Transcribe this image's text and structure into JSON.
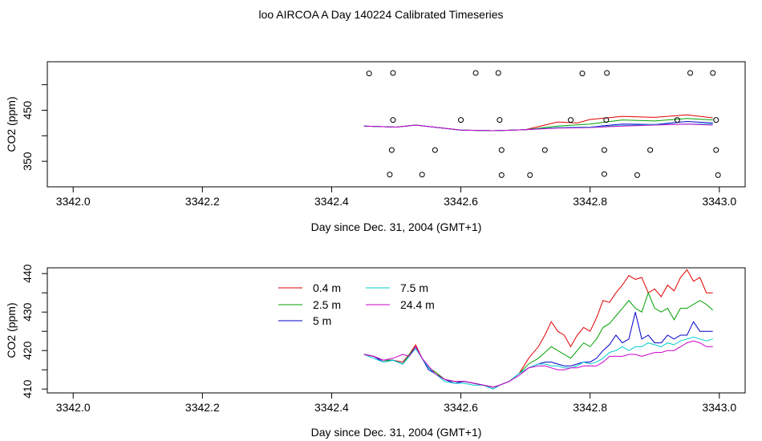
{
  "title": "loo AIRCOA A  Day 140224  Calibrated Timeseries",
  "chart_data": [
    {
      "type": "line",
      "panel": "top",
      "xlabel": "Day since Dec. 31, 2004 (GMT+1)",
      "ylabel": "CO2 (ppm)",
      "xlim": [
        3341.96,
        3343.04
      ],
      "ylim": [
        300,
        545
      ],
      "xticks": [
        "3342.0",
        "3342.2",
        "3342.4",
        "3342.6",
        "3342.8",
        "3343.0"
      ],
      "xtick_values": [
        3342.0,
        3342.2,
        3342.4,
        3342.6,
        3342.8,
        3343.0
      ],
      "yticks": [
        "350",
        "400",
        "450",
        "500"
      ],
      "ytick_values": [
        350,
        400,
        450,
        500
      ],
      "ytick_labels_shown": [
        "350",
        "450"
      ],
      "series": [
        {
          "color": "#e00000",
          "x": [
            3342.45,
            3342.5,
            3342.53,
            3342.6,
            3342.65,
            3342.7,
            3342.75,
            3342.78,
            3342.8,
            3342.85,
            3342.9,
            3342.95,
            3342.99
          ],
          "values": [
            419,
            417,
            421,
            411,
            410,
            412,
            427,
            425,
            432,
            438,
            436,
            441,
            435
          ]
        },
        {
          "color": "#00a000",
          "x": [
            3342.45,
            3342.5,
            3342.53,
            3342.6,
            3342.65,
            3342.7,
            3342.75,
            3342.8,
            3342.85,
            3342.9,
            3342.95,
            3342.99
          ],
          "values": [
            419,
            417,
            421,
            411,
            410,
            412,
            419,
            423,
            431,
            429,
            434,
            431
          ]
        },
        {
          "color": "#0000cc",
          "x": [
            3342.45,
            3342.5,
            3342.53,
            3342.6,
            3342.65,
            3342.7,
            3342.75,
            3342.8,
            3342.85,
            3342.9,
            3342.95,
            3342.99
          ],
          "values": [
            419,
            417,
            421,
            411,
            410,
            412,
            416,
            417,
            423,
            422,
            428,
            425
          ]
        },
        {
          "color": "#00cccc",
          "x": [
            3342.45,
            3342.5,
            3342.53,
            3342.6,
            3342.65,
            3342.7,
            3342.75,
            3342.8,
            3342.85,
            3342.9,
            3342.95,
            3342.99
          ],
          "values": [
            419,
            417,
            421,
            411,
            410,
            412,
            416,
            417,
            420,
            422,
            423,
            423
          ]
        },
        {
          "color": "#cc00cc",
          "x": [
            3342.45,
            3342.5,
            3342.53,
            3342.6,
            3342.65,
            3342.7,
            3342.75,
            3342.8,
            3342.85,
            3342.9,
            3342.95,
            3342.99
          ],
          "values": [
            419,
            417,
            421,
            411,
            410,
            412,
            415,
            416,
            419,
            421,
            423,
            421
          ]
        }
      ],
      "points": [
        {
          "x": 3342.458,
          "y": 522
        },
        {
          "x": 3342.495,
          "y": 523
        },
        {
          "x": 3342.623,
          "y": 523
        },
        {
          "x": 3342.658,
          "y": 523
        },
        {
          "x": 3342.788,
          "y": 522
        },
        {
          "x": 3342.826,
          "y": 523
        },
        {
          "x": 3342.955,
          "y": 523
        },
        {
          "x": 3342.99,
          "y": 523
        },
        {
          "x": 3342.495,
          "y": 431
        },
        {
          "x": 3342.6,
          "y": 431
        },
        {
          "x": 3342.66,
          "y": 431
        },
        {
          "x": 3342.77,
          "y": 431
        },
        {
          "x": 3342.825,
          "y": 431
        },
        {
          "x": 3342.935,
          "y": 431
        },
        {
          "x": 3342.995,
          "y": 431
        },
        {
          "x": 3342.493,
          "y": 372
        },
        {
          "x": 3342.56,
          "y": 372
        },
        {
          "x": 3342.663,
          "y": 372
        },
        {
          "x": 3342.73,
          "y": 372
        },
        {
          "x": 3342.822,
          "y": 372
        },
        {
          "x": 3342.893,
          "y": 372
        },
        {
          "x": 3342.995,
          "y": 372
        },
        {
          "x": 3342.49,
          "y": 324
        },
        {
          "x": 3342.54,
          "y": 324
        },
        {
          "x": 3342.663,
          "y": 323
        },
        {
          "x": 3342.707,
          "y": 323
        },
        {
          "x": 3342.822,
          "y": 325
        },
        {
          "x": 3342.873,
          "y": 323
        },
        {
          "x": 3342.998,
          "y": 323
        }
      ]
    },
    {
      "type": "line",
      "panel": "bottom",
      "xlabel": "Day since Dec. 31, 2004 (GMT+1)",
      "ylabel": "CO2 (ppm)",
      "xlim": [
        3341.96,
        3343.04
      ],
      "ylim": [
        409,
        441.5
      ],
      "xticks": [
        "3342.0",
        "3342.2",
        "3342.4",
        "3342.6",
        "3342.8",
        "3343.0"
      ],
      "xtick_values": [
        3342.0,
        3342.2,
        3342.4,
        3342.6,
        3342.8,
        3343.0
      ],
      "yticks": [
        "410",
        "415",
        "420",
        "425",
        "430",
        "435",
        "440"
      ],
      "ytick_values": [
        410,
        415,
        420,
        425,
        430,
        435,
        440
      ],
      "ytick_labels_shown": [
        "410",
        "420",
        "430",
        "440"
      ],
      "legend": "top-left",
      "series": [
        {
          "name": "0.4 m",
          "color": "#e00000",
          "x": [
            3342.45,
            3342.465,
            3342.48,
            3342.495,
            3342.51,
            3342.52,
            3342.53,
            3342.54,
            3342.55,
            3342.56,
            3342.575,
            3342.59,
            3342.605,
            3342.62,
            3342.635,
            3342.65,
            3342.66,
            3342.675,
            3342.69,
            3342.705,
            3342.72,
            3342.73,
            3342.74,
            3342.75,
            3342.76,
            3342.77,
            3342.78,
            3342.79,
            3342.8,
            3342.81,
            3342.82,
            3342.83,
            3342.84,
            3342.85,
            3342.86,
            3342.87,
            3342.88,
            3342.89,
            3342.9,
            3342.91,
            3342.92,
            3342.93,
            3342.94,
            3342.95,
            3342.96,
            3342.97,
            3342.98,
            3342.99
          ],
          "values": [
            419,
            418.5,
            417.5,
            417.5,
            417,
            419,
            421.5,
            418,
            415.5,
            414.5,
            412.5,
            412,
            412,
            411.5,
            411,
            410.5,
            411,
            412,
            414,
            418,
            421,
            424,
            427.5,
            425,
            424,
            421,
            424,
            426,
            425,
            428.5,
            433,
            432.5,
            435,
            437,
            439.5,
            438.5,
            439,
            435,
            436,
            434,
            437,
            435.5,
            439,
            441,
            438,
            439,
            435,
            435
          ]
        },
        {
          "name": "2.5 m",
          "color": "#00a000",
          "x": [
            3342.45,
            3342.465,
            3342.48,
            3342.495,
            3342.51,
            3342.52,
            3342.53,
            3342.54,
            3342.55,
            3342.56,
            3342.575,
            3342.59,
            3342.605,
            3342.62,
            3342.635,
            3342.65,
            3342.66,
            3342.675,
            3342.69,
            3342.705,
            3342.72,
            3342.73,
            3342.74,
            3342.75,
            3342.76,
            3342.77,
            3342.78,
            3342.79,
            3342.8,
            3342.81,
            3342.82,
            3342.83,
            3342.84,
            3342.85,
            3342.86,
            3342.87,
            3342.88,
            3342.89,
            3342.9,
            3342.91,
            3342.92,
            3342.93,
            3342.94,
            3342.95,
            3342.96,
            3342.97,
            3342.98,
            3342.99
          ],
          "values": [
            419,
            418.5,
            417.5,
            417.5,
            416.5,
            419,
            421,
            418,
            415.5,
            414.5,
            412.5,
            412,
            412,
            411.5,
            411,
            410.5,
            411,
            412,
            414,
            416.5,
            418,
            419.5,
            421,
            420,
            419,
            418,
            420,
            422,
            421,
            423,
            426,
            427,
            429,
            431,
            433,
            431,
            430,
            435,
            431,
            430,
            431,
            428,
            431,
            431,
            432,
            433,
            432,
            430.5
          ]
        },
        {
          "name": "5 m",
          "color": "#0000cc",
          "x": [
            3342.45,
            3342.465,
            3342.48,
            3342.495,
            3342.51,
            3342.52,
            3342.53,
            3342.54,
            3342.55,
            3342.56,
            3342.575,
            3342.59,
            3342.605,
            3342.62,
            3342.635,
            3342.65,
            3342.66,
            3342.675,
            3342.69,
            3342.705,
            3342.72,
            3342.73,
            3342.74,
            3342.75,
            3342.76,
            3342.77,
            3342.78,
            3342.79,
            3342.8,
            3342.81,
            3342.82,
            3342.83,
            3342.84,
            3342.85,
            3342.86,
            3342.87,
            3342.88,
            3342.89,
            3342.9,
            3342.91,
            3342.92,
            3342.93,
            3342.94,
            3342.95,
            3342.96,
            3342.97,
            3342.98,
            3342.99
          ],
          "values": [
            419,
            418.5,
            417,
            417.5,
            416.5,
            418.5,
            421,
            418,
            415,
            414,
            412.5,
            411.5,
            412,
            411.5,
            411,
            410,
            411,
            412,
            414,
            415.5,
            416.5,
            417,
            417,
            416.5,
            416,
            416,
            416.5,
            417,
            417,
            418,
            420,
            421.5,
            424,
            422,
            423,
            430,
            423,
            424,
            422,
            422,
            424,
            423,
            424,
            424,
            427.5,
            425,
            425,
            425
          ]
        },
        {
          "name": "7.5 m",
          "color": "#00cccc",
          "x": [
            3342.45,
            3342.465,
            3342.48,
            3342.495,
            3342.51,
            3342.52,
            3342.53,
            3342.54,
            3342.55,
            3342.56,
            3342.575,
            3342.59,
            3342.605,
            3342.62,
            3342.635,
            3342.65,
            3342.66,
            3342.675,
            3342.69,
            3342.705,
            3342.72,
            3342.73,
            3342.74,
            3342.75,
            3342.76,
            3342.77,
            3342.78,
            3342.79,
            3342.8,
            3342.81,
            3342.82,
            3342.83,
            3342.84,
            3342.85,
            3342.86,
            3342.87,
            3342.88,
            3342.89,
            3342.9,
            3342.91,
            3342.92,
            3342.93,
            3342.94,
            3342.95,
            3342.96,
            3342.97,
            3342.98,
            3342.99
          ],
          "values": [
            419,
            418,
            417,
            417.5,
            416.5,
            418.5,
            420.5,
            418,
            415.5,
            414,
            412,
            411.5,
            411.5,
            411,
            411,
            410,
            411,
            412,
            414,
            415.5,
            416.5,
            416.5,
            416,
            416,
            415.5,
            415.5,
            416,
            417,
            416.5,
            417,
            418,
            419.5,
            420,
            421,
            420,
            421,
            421,
            422,
            421.5,
            421,
            422,
            421.5,
            422.5,
            423,
            423.5,
            423,
            422.5,
            423
          ]
        },
        {
          "name": "24.4 m",
          "color": "#cc00cc",
          "x": [
            3342.45,
            3342.465,
            3342.48,
            3342.495,
            3342.51,
            3342.52,
            3342.53,
            3342.54,
            3342.55,
            3342.56,
            3342.575,
            3342.59,
            3342.605,
            3342.62,
            3342.635,
            3342.65,
            3342.66,
            3342.675,
            3342.69,
            3342.705,
            3342.72,
            3342.73,
            3342.74,
            3342.75,
            3342.76,
            3342.77,
            3342.78,
            3342.79,
            3342.8,
            3342.81,
            3342.82,
            3342.83,
            3342.84,
            3342.85,
            3342.86,
            3342.87,
            3342.88,
            3342.89,
            3342.9,
            3342.91,
            3342.92,
            3342.93,
            3342.94,
            3342.95,
            3342.96,
            3342.97,
            3342.98,
            3342.99
          ],
          "values": [
            419,
            418.5,
            417.5,
            418,
            419,
            418.5,
            421,
            418,
            416,
            414,
            412.5,
            412,
            412,
            411.5,
            411,
            410.5,
            411,
            412,
            413.5,
            415.5,
            416,
            416,
            415.5,
            415,
            415,
            415.5,
            415.5,
            416,
            416,
            416,
            417,
            418.5,
            418.5,
            418.5,
            419,
            419,
            418.5,
            419,
            419.5,
            419.5,
            420,
            420,
            421,
            422,
            422.5,
            422,
            421,
            421
          ]
        }
      ]
    }
  ]
}
